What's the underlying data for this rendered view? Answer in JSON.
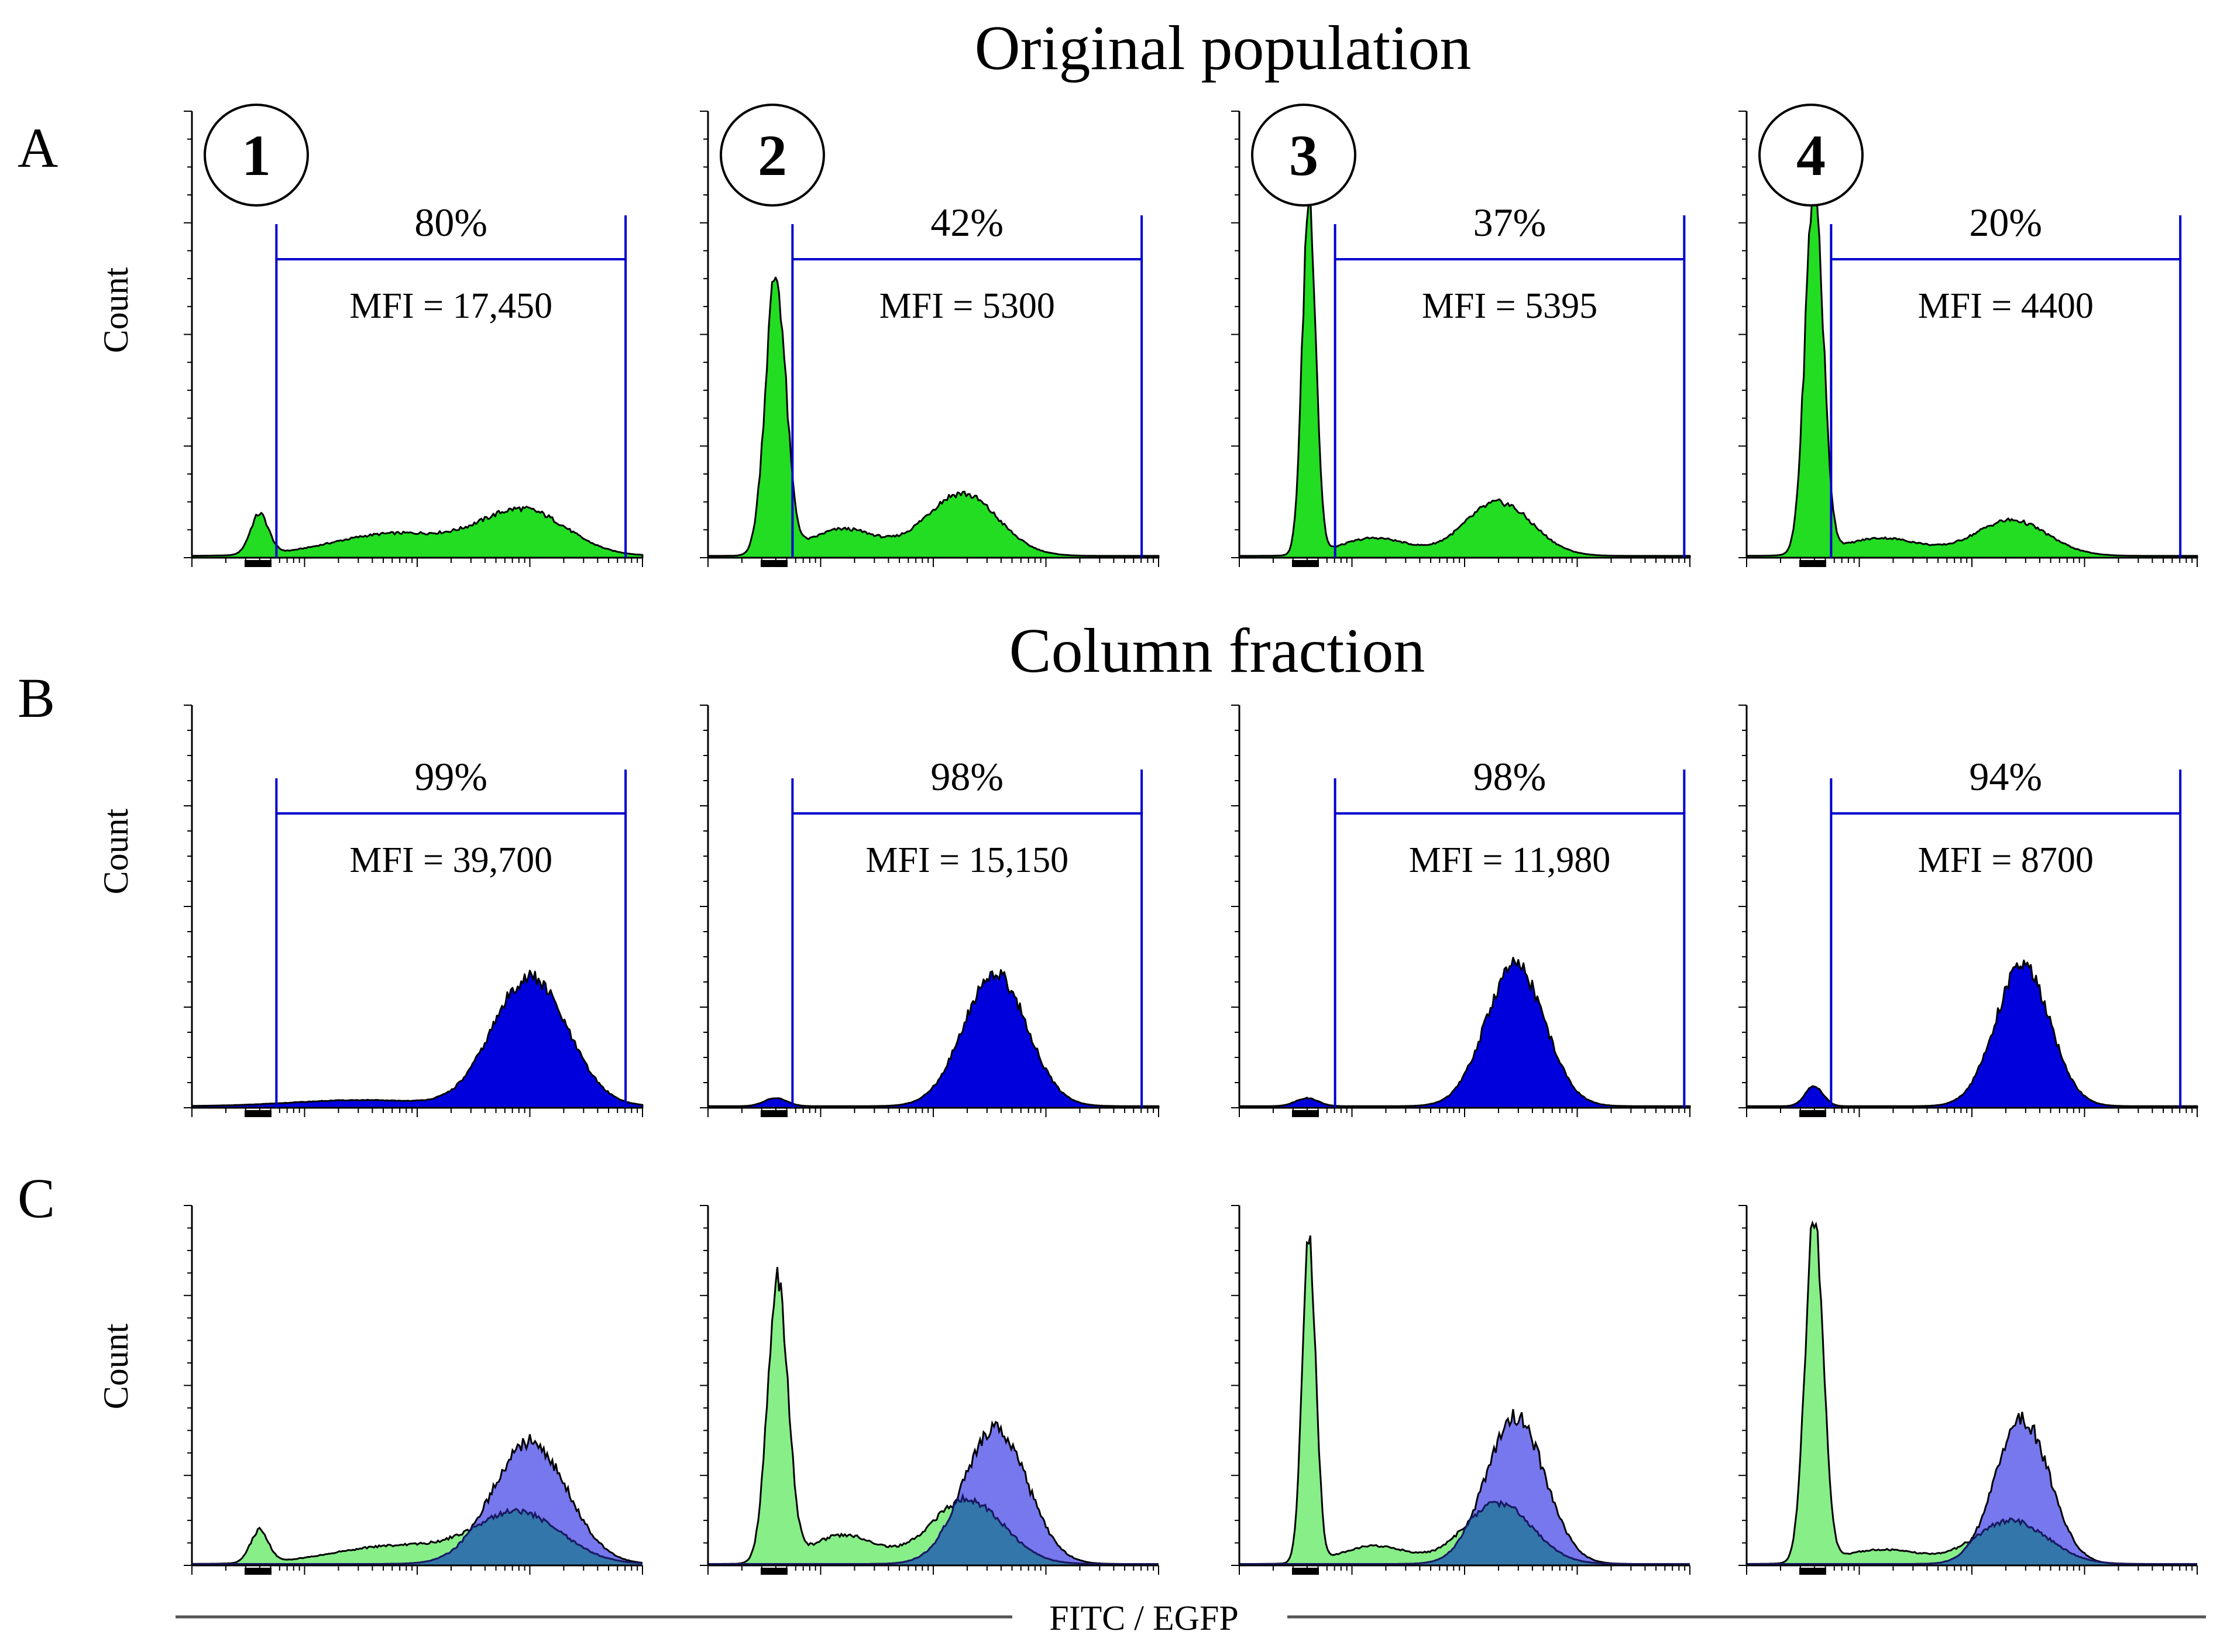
{
  "figure": {
    "title_A": "Original population",
    "title_B": "Column fraction",
    "row_letters": [
      "A",
      "B",
      "C"
    ],
    "x_axis_label": "FITC / EGFP",
    "y_axis_label": "Count",
    "colors": {
      "original": "#22dd22",
      "column": "#0000dd",
      "overlay_original": "#88ee88",
      "overlay_column": "#7777ee",
      "overlay_overlap": "#3377aa",
      "gate": "#0000cc",
      "outline": "#000000"
    }
  },
  "chart_data": [
    {
      "type": "histogram-grid",
      "row": "A",
      "title": "Original population",
      "xlabel": "FITC / EGFP",
      "ylabel": "Count",
      "x_scale": "log10",
      "x_range_log": [
        0,
        4
      ],
      "panels": [
        {
          "sample": "1",
          "gate_percent": "80%",
          "mfi_label": "MFI = 17,450",
          "gate_range_log": [
            0.75,
            3.85
          ],
          "series": "original",
          "peaks": [
            {
              "mu": 0.6,
              "sigma": 0.08,
              "height": 0.09
            },
            {
              "mu": 2.95,
              "sigma": 0.38,
              "height": 0.1
            },
            {
              "mu": 1.8,
              "sigma": 0.55,
              "height": 0.05
            }
          ]
        },
        {
          "sample": "2",
          "gate_percent": "42%",
          "mfi_label": "MFI = 5300",
          "gate_range_log": [
            0.75,
            3.85
          ],
          "series": "original",
          "peaks": [
            {
              "mu": 0.6,
              "sigma": 0.09,
              "height": 0.62
            },
            {
              "mu": 2.25,
              "sigma": 0.32,
              "height": 0.14
            },
            {
              "mu": 1.2,
              "sigma": 0.3,
              "height": 0.06
            }
          ]
        },
        {
          "sample": "3",
          "gate_percent": "37%",
          "mfi_label": "MFI = 5395",
          "gate_range_log": [
            0.85,
            3.95
          ],
          "series": "original",
          "peaks": [
            {
              "mu": 0.62,
              "sigma": 0.06,
              "height": 0.8
            },
            {
              "mu": 2.3,
              "sigma": 0.3,
              "height": 0.12
            },
            {
              "mu": 1.2,
              "sigma": 0.3,
              "height": 0.04
            }
          ]
        },
        {
          "sample": "4",
          "gate_percent": "20%",
          "mfi_label": "MFI = 4400",
          "gate_range_log": [
            0.75,
            3.85
          ],
          "series": "original",
          "peaks": [
            {
              "mu": 0.6,
              "sigma": 0.08,
              "height": 0.82
            },
            {
              "mu": 2.35,
              "sigma": 0.32,
              "height": 0.08
            },
            {
              "mu": 1.2,
              "sigma": 0.35,
              "height": 0.04
            }
          ]
        }
      ]
    },
    {
      "type": "histogram-grid",
      "row": "B",
      "title": "Column fraction",
      "xlabel": "FITC / EGFP",
      "ylabel": "Count",
      "x_scale": "log10",
      "x_range_log": [
        0,
        4
      ],
      "panels": [
        {
          "sample": "1",
          "gate_percent": "99%",
          "mfi_label": "MFI = 39,700",
          "gate_range_log": [
            0.75,
            3.85
          ],
          "series": "column",
          "peaks": [
            {
              "mu": 3.0,
              "sigma": 0.33,
              "height": 0.32
            },
            {
              "mu": 1.5,
              "sigma": 0.6,
              "height": 0.015
            }
          ]
        },
        {
          "sample": "2",
          "gate_percent": "98%",
          "mfi_label": "MFI = 15,150",
          "gate_range_log": [
            0.75,
            3.85
          ],
          "series": "column",
          "peaks": [
            {
              "mu": 2.55,
              "sigma": 0.28,
              "height": 0.33
            },
            {
              "mu": 0.6,
              "sigma": 0.1,
              "height": 0.02
            }
          ]
        },
        {
          "sample": "3",
          "gate_percent": "98%",
          "mfi_label": "MFI = 11,980",
          "gate_range_log": [
            0.85,
            3.95
          ],
          "series": "column",
          "peaks": [
            {
              "mu": 2.45,
              "sigma": 0.26,
              "height": 0.35
            },
            {
              "mu": 0.6,
              "sigma": 0.1,
              "height": 0.02
            }
          ]
        },
        {
          "sample": "4",
          "gate_percent": "94%",
          "mfi_label": "MFI = 8700",
          "gate_range_log": [
            0.75,
            3.85
          ],
          "series": "column",
          "peaks": [
            {
              "mu": 2.45,
              "sigma": 0.24,
              "height": 0.35
            },
            {
              "mu": 0.6,
              "sigma": 0.08,
              "height": 0.05
            }
          ]
        }
      ]
    },
    {
      "type": "histogram-overlay-grid",
      "row": "C",
      "xlabel": "FITC / EGFP",
      "ylabel": "Count",
      "x_scale": "log10",
      "x_range_log": [
        0,
        4
      ],
      "panels": [
        {
          "sample": "1",
          "original_peaks": [
            {
              "mu": 0.6,
              "sigma": 0.08,
              "height": 0.09
            },
            {
              "mu": 2.9,
              "sigma": 0.38,
              "height": 0.14
            },
            {
              "mu": 1.8,
              "sigma": 0.55,
              "height": 0.05
            }
          ],
          "column_peaks": [
            {
              "mu": 3.0,
              "sigma": 0.33,
              "height": 0.34
            }
          ]
        },
        {
          "sample": "2",
          "original_peaks": [
            {
              "mu": 0.62,
              "sigma": 0.09,
              "height": 0.78
            },
            {
              "mu": 2.3,
              "sigma": 0.32,
              "height": 0.18
            },
            {
              "mu": 1.2,
              "sigma": 0.3,
              "height": 0.08
            }
          ],
          "column_peaks": [
            {
              "mu": 2.55,
              "sigma": 0.28,
              "height": 0.38
            }
          ]
        },
        {
          "sample": "3",
          "original_peaks": [
            {
              "mu": 0.62,
              "sigma": 0.06,
              "height": 0.9
            },
            {
              "mu": 2.3,
              "sigma": 0.3,
              "height": 0.17
            },
            {
              "mu": 1.2,
              "sigma": 0.3,
              "height": 0.05
            }
          ],
          "column_peaks": [
            {
              "mu": 2.45,
              "sigma": 0.26,
              "height": 0.41
            }
          ]
        },
        {
          "sample": "4",
          "original_peaks": [
            {
              "mu": 0.6,
              "sigma": 0.08,
              "height": 0.96
            },
            {
              "mu": 2.35,
              "sigma": 0.32,
              "height": 0.12
            },
            {
              "mu": 1.2,
              "sigma": 0.35,
              "height": 0.04
            }
          ],
          "column_peaks": [
            {
              "mu": 2.45,
              "sigma": 0.24,
              "height": 0.4
            }
          ]
        }
      ]
    }
  ]
}
